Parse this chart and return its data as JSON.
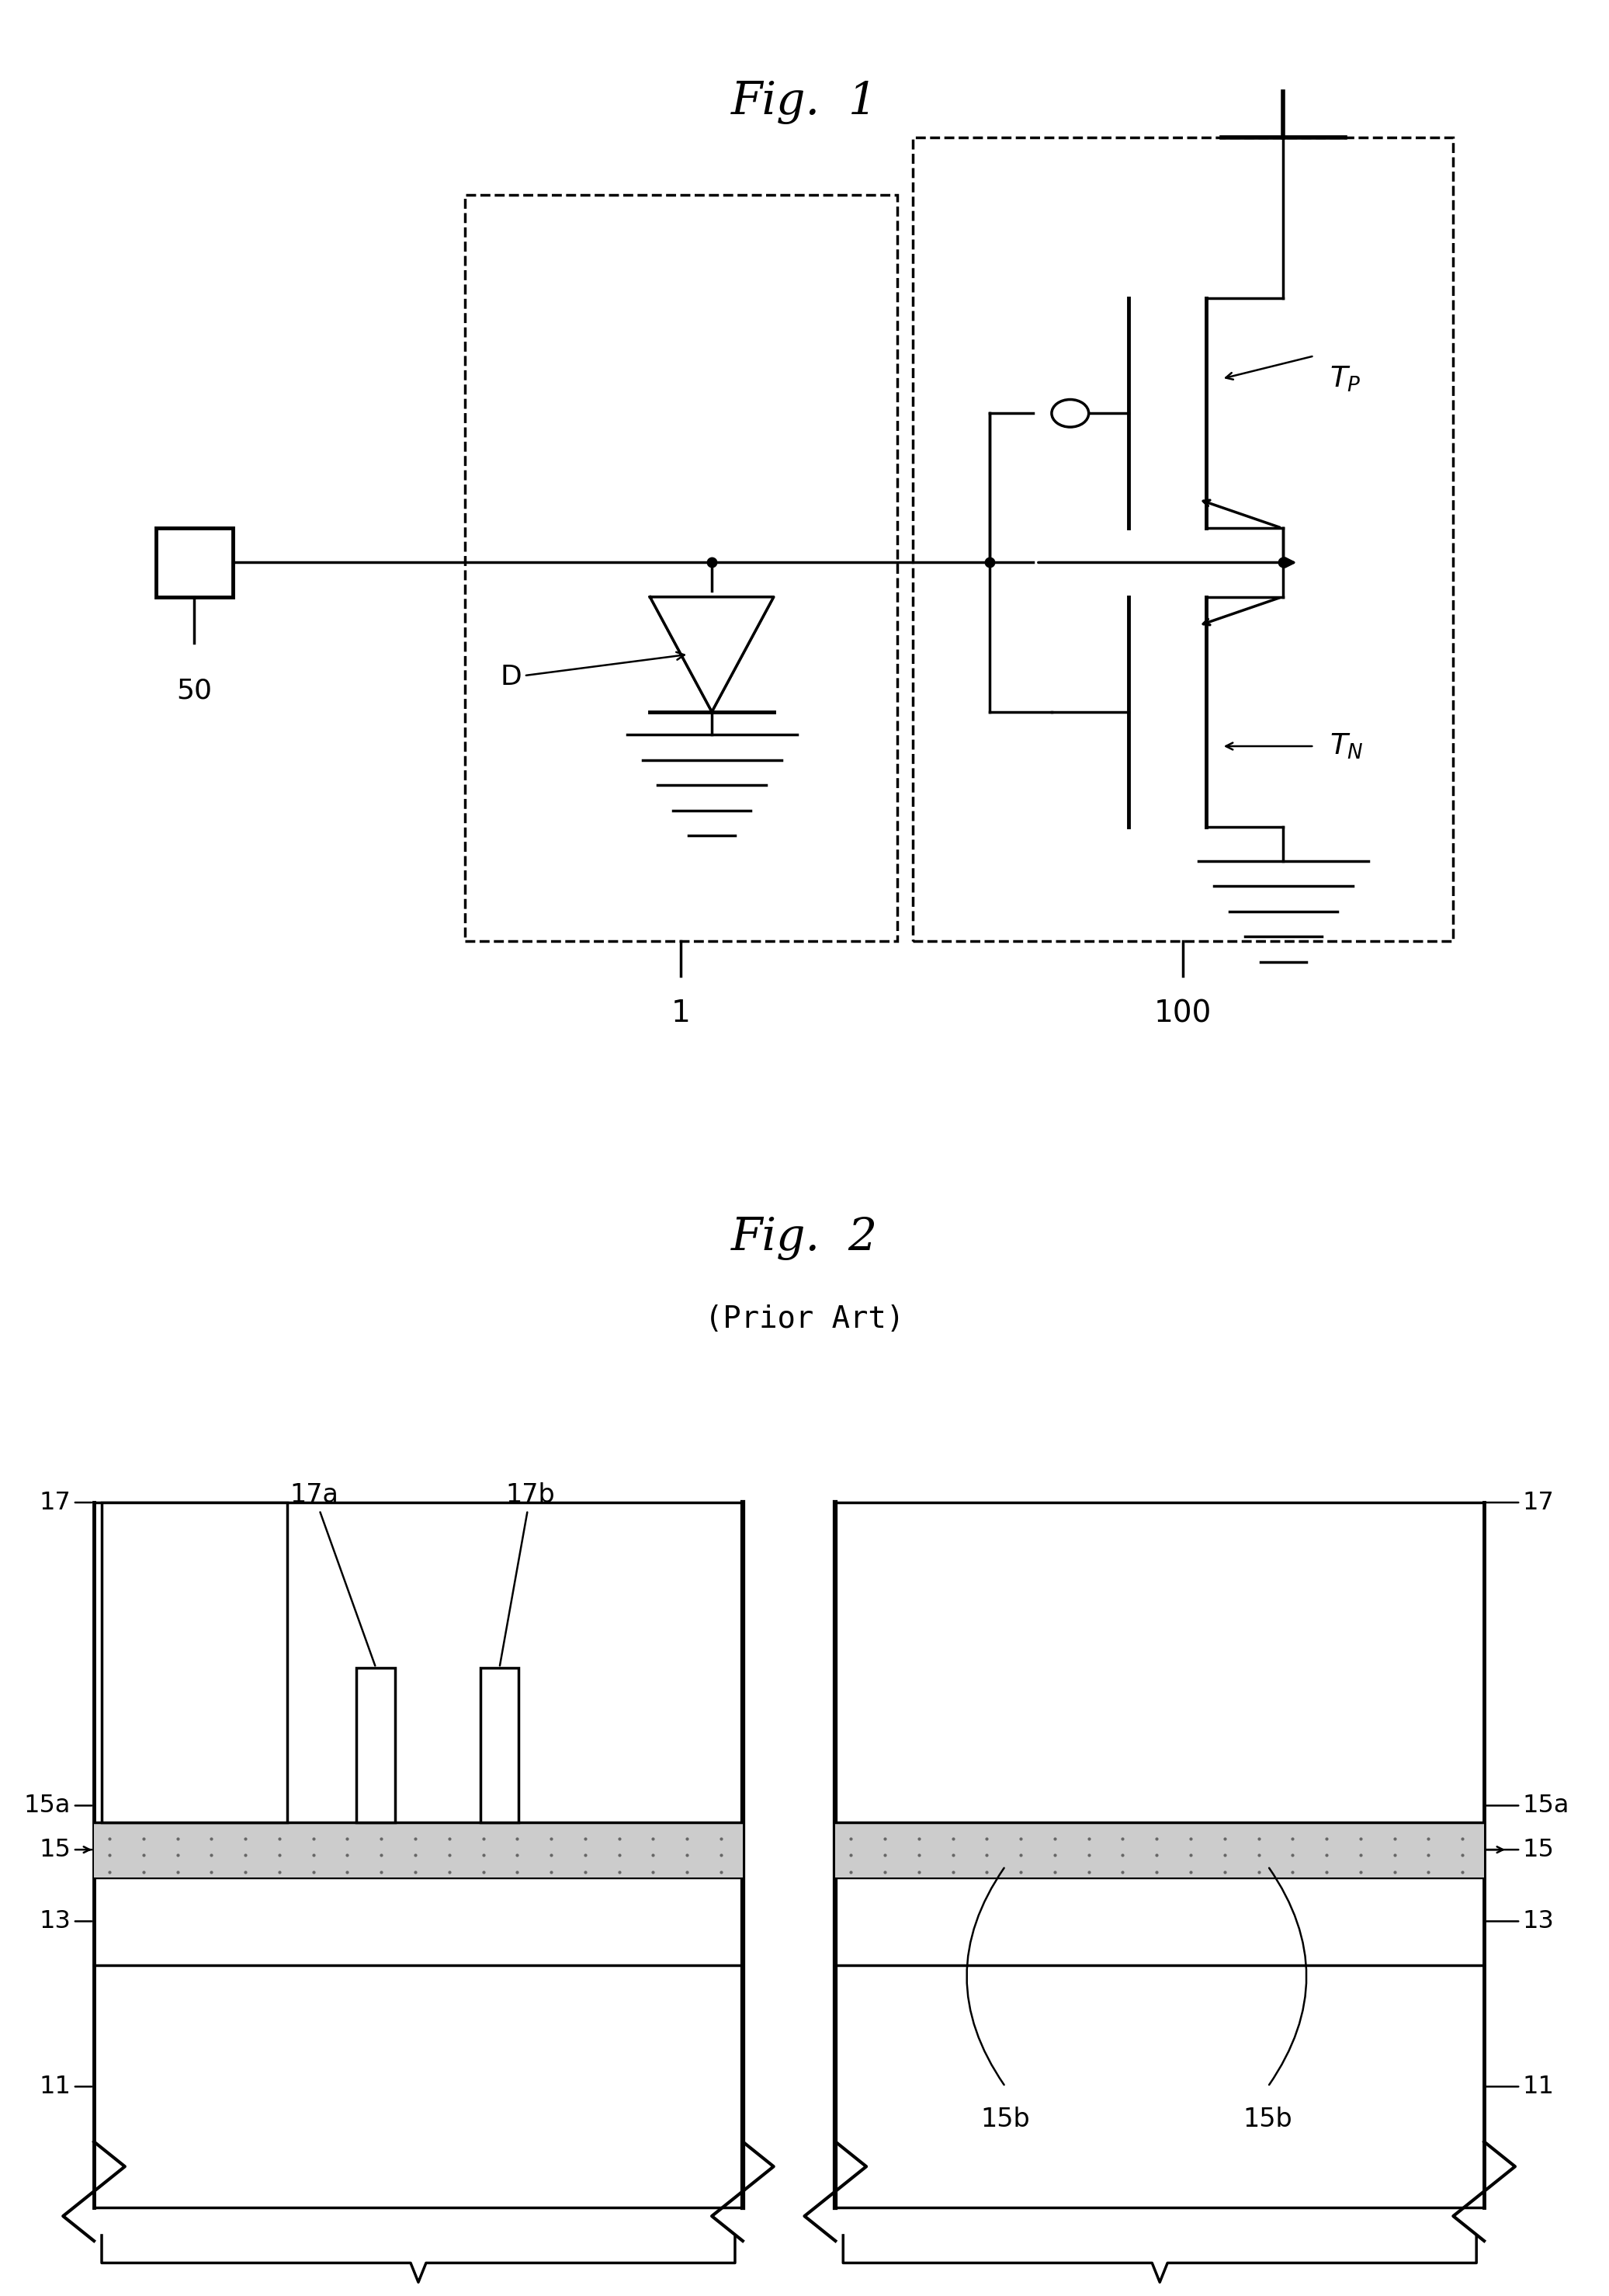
{
  "fig1_title": "Fig.  1",
  "fig2_title": "Fig.  2",
  "fig2_subtitle": "(Prior Art)",
  "background_color": "#ffffff",
  "line_color": "#000000",
  "title_fontsize": 42,
  "label_fontsize": 24,
  "subtitle_fontsize": 28
}
